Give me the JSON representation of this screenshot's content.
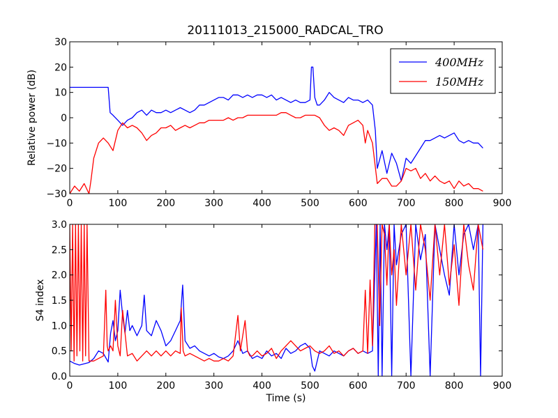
{
  "figure_title": "20111013_215000_RADCAL_TRO",
  "colors": {
    "series_400": "#0000ff",
    "series_150": "#ff0000"
  },
  "chart_data": [
    {
      "type": "line",
      "title": "20111013_215000_RADCAL_TRO",
      "xlabel": "",
      "ylabel": "Relative power (dB)",
      "xlim": [
        0,
        900
      ],
      "ylim": [
        -30,
        30
      ],
      "xticks": [
        0,
        100,
        200,
        300,
        400,
        500,
        600,
        700,
        800,
        900
      ],
      "yticks": [
        -30,
        -20,
        -10,
        0,
        10,
        20,
        30
      ],
      "xtick_labels": [
        "0",
        "100",
        "200",
        "300",
        "400",
        "500",
        "600",
        "700",
        "800",
        "900"
      ],
      "ytick_labels": [
        "−30",
        "−20",
        "−10",
        "0",
        "10",
        "20",
        "30"
      ],
      "grid": false,
      "legend": "top-right",
      "series": [
        {
          "name": "400MHz",
          "color": "#0000ff",
          "x": [
            0,
            20,
            40,
            60,
            80,
            84,
            90,
            100,
            110,
            120,
            130,
            140,
            150,
            160,
            170,
            180,
            190,
            200,
            210,
            220,
            230,
            240,
            250,
            260,
            270,
            280,
            290,
            300,
            310,
            320,
            330,
            340,
            350,
            360,
            370,
            380,
            390,
            400,
            410,
            420,
            430,
            440,
            450,
            460,
            470,
            480,
            490,
            500,
            503,
            506,
            510,
            515,
            520,
            530,
            540,
            550,
            560,
            570,
            580,
            590,
            600,
            610,
            620,
            630,
            636,
            640,
            650,
            660,
            670,
            680,
            690,
            700,
            710,
            720,
            730,
            740,
            750,
            760,
            770,
            780,
            790,
            800,
            810,
            820,
            830,
            840,
            850,
            860
          ],
          "y": [
            12,
            12,
            12,
            12,
            12,
            2,
            1,
            -1,
            -3,
            -1,
            0,
            2,
            3,
            1,
            3,
            2,
            2,
            3,
            2,
            3,
            4,
            3,
            2,
            3,
            5,
            5,
            6,
            7,
            8,
            8,
            7,
            9,
            9,
            8,
            9,
            8,
            9,
            9,
            8,
            9,
            7,
            8,
            7,
            6,
            7,
            6,
            6,
            7,
            20,
            20,
            8,
            5,
            5,
            7,
            10,
            8,
            7,
            6,
            8,
            7,
            7,
            6,
            7,
            5,
            -5,
            -20,
            -13,
            -22,
            -14,
            -18,
            -25,
            -16,
            -18,
            -15,
            -12,
            -9,
            -9,
            -8,
            -7,
            -8,
            -7,
            -6,
            -9,
            -10,
            -9,
            -10,
            -10,
            -12
          ]
        },
        {
          "name": "150MHz",
          "color": "#ff0000",
          "x": [
            0,
            10,
            20,
            30,
            40,
            44,
            50,
            60,
            70,
            80,
            90,
            100,
            110,
            120,
            130,
            140,
            150,
            160,
            170,
            180,
            190,
            200,
            210,
            220,
            230,
            240,
            250,
            260,
            270,
            280,
            290,
            300,
            310,
            320,
            330,
            340,
            350,
            360,
            370,
            380,
            390,
            400,
            410,
            420,
            430,
            440,
            450,
            460,
            470,
            480,
            490,
            500,
            510,
            520,
            530,
            540,
            550,
            560,
            570,
            580,
            590,
            600,
            610,
            615,
            620,
            630,
            640,
            650,
            660,
            670,
            680,
            690,
            700,
            710,
            720,
            730,
            740,
            750,
            760,
            770,
            780,
            790,
            800,
            810,
            820,
            830,
            840,
            850,
            860
          ],
          "y": [
            -30,
            -27,
            -29,
            -26,
            -30,
            -25,
            -16,
            -10,
            -8,
            -10,
            -13,
            -5,
            -2,
            -4,
            -3,
            -4,
            -6,
            -9,
            -7,
            -6,
            -4,
            -4,
            -3,
            -5,
            -4,
            -3,
            -4,
            -3,
            -2,
            -2,
            -1,
            -1,
            -1,
            -1,
            0,
            -1,
            0,
            0,
            1,
            1,
            1,
            1,
            1,
            1,
            1,
            2,
            2,
            1,
            0,
            0,
            1,
            1,
            1,
            0,
            -3,
            -5,
            -4,
            -5,
            -7,
            -3,
            -2,
            -1,
            -3,
            -10,
            -5,
            -10,
            -26,
            -24,
            -24,
            -27,
            -27,
            -25,
            -20,
            -21,
            -20,
            -24,
            -22,
            -25,
            -23,
            -25,
            -26,
            -25,
            -28,
            -25,
            -27,
            -26,
            -28,
            -28,
            -29
          ]
        }
      ]
    },
    {
      "type": "line",
      "title": "",
      "xlabel": "Time (s)",
      "ylabel": "S4 index",
      "xlim": [
        0,
        900
      ],
      "ylim": [
        0.0,
        3.0
      ],
      "xticks": [
        0,
        100,
        200,
        300,
        400,
        500,
        600,
        700,
        800,
        900
      ],
      "yticks": [
        0.0,
        0.5,
        1.0,
        1.5,
        2.0,
        2.5,
        3.0
      ],
      "xtick_labels": [
        "0",
        "100",
        "200",
        "300",
        "400",
        "500",
        "600",
        "700",
        "800",
        "900"
      ],
      "ytick_labels": [
        "0.0",
        "0.5",
        "1.0",
        "1.5",
        "2.0",
        "2.5",
        "3.0"
      ],
      "grid": false,
      "series": [
        {
          "name": "400MHz",
          "color": "#0000ff",
          "x": [
            0,
            10,
            20,
            40,
            50,
            60,
            70,
            80,
            85,
            90,
            95,
            100,
            105,
            110,
            115,
            120,
            125,
            130,
            140,
            150,
            155,
            160,
            170,
            180,
            190,
            200,
            210,
            220,
            230,
            235,
            240,
            250,
            260,
            270,
            280,
            290,
            300,
            310,
            320,
            330,
            340,
            350,
            360,
            370,
            380,
            390,
            400,
            410,
            420,
            430,
            440,
            450,
            460,
            470,
            480,
            490,
            500,
            505,
            510,
            520,
            530,
            540,
            550,
            560,
            570,
            580,
            590,
            600,
            610,
            620,
            630,
            638,
            642,
            646,
            650,
            655,
            660,
            665,
            670,
            675,
            680,
            690,
            700,
            710,
            720,
            730,
            740,
            750,
            760,
            770,
            780,
            790,
            800,
            810,
            820,
            830,
            840,
            850,
            855,
            860
          ],
          "y": [
            0.3,
            0.25,
            0.22,
            0.27,
            0.35,
            0.5,
            0.45,
            0.28,
            0.85,
            1.1,
            0.7,
            0.9,
            1.7,
            1.2,
            0.85,
            1.3,
            0.9,
            1.0,
            0.8,
            1.0,
            1.6,
            0.9,
            0.8,
            1.1,
            0.9,
            0.6,
            0.7,
            0.9,
            1.1,
            1.8,
            0.7,
            0.55,
            0.6,
            0.5,
            0.45,
            0.4,
            0.45,
            0.38,
            0.35,
            0.4,
            0.5,
            0.7,
            0.45,
            0.5,
            0.35,
            0.4,
            0.35,
            0.5,
            0.4,
            0.45,
            0.35,
            0.55,
            0.45,
            0.5,
            0.6,
            0.65,
            0.55,
            0.2,
            0.1,
            0.5,
            0.45,
            0.4,
            0.5,
            0.45,
            0.4,
            0.5,
            0.55,
            0.45,
            0.5,
            0.45,
            0.5,
            3.0,
            0.0,
            3.0,
            0.0,
            3.0,
            2.5,
            3.0,
            0.0,
            3.0,
            2.2,
            2.8,
            3.0,
            0.0,
            3.0,
            2.3,
            2.8,
            0.0,
            3.0,
            2.5,
            2.0,
            1.6,
            3.0,
            2.0,
            2.8,
            3.0,
            2.5,
            3.0,
            0.0,
            3.0
          ]
        },
        {
          "name": "150MHz",
          "color": "#ff0000",
          "x": [
            0,
            3,
            6,
            9,
            12,
            15,
            18,
            21,
            24,
            27,
            30,
            33,
            36,
            40,
            50,
            60,
            70,
            75,
            78,
            80,
            85,
            90,
            95,
            100,
            105,
            110,
            120,
            130,
            140,
            150,
            160,
            170,
            180,
            190,
            200,
            210,
            220,
            230,
            232,
            236,
            240,
            250,
            260,
            270,
            280,
            290,
            300,
            310,
            320,
            330,
            340,
            350,
            355,
            360,
            365,
            370,
            375,
            380,
            390,
            400,
            410,
            420,
            430,
            440,
            450,
            460,
            470,
            480,
            490,
            500,
            510,
            520,
            530,
            540,
            550,
            560,
            570,
            580,
            590,
            600,
            610,
            615,
            620,
            625,
            630,
            635,
            640,
            645,
            650,
            655,
            660,
            665,
            670,
            675,
            680,
            690,
            700,
            710,
            720,
            730,
            740,
            750,
            760,
            770,
            780,
            790,
            800,
            810,
            820,
            830,
            840,
            850,
            860
          ],
          "y": [
            3.0,
            0.5,
            3.0,
            0.3,
            3.0,
            0.4,
            3.0,
            0.5,
            3.0,
            0.3,
            3.0,
            0.4,
            3.0,
            0.3,
            0.3,
            0.35,
            0.4,
            1.7,
            0.6,
            0.5,
            0.6,
            0.5,
            1.5,
            0.6,
            0.4,
            1.3,
            0.4,
            0.45,
            0.3,
            0.4,
            0.5,
            0.4,
            0.5,
            0.4,
            0.5,
            0.4,
            0.5,
            0.45,
            1.35,
            0.5,
            0.4,
            0.45,
            0.4,
            0.35,
            0.3,
            0.35,
            0.3,
            0.3,
            0.35,
            0.3,
            0.4,
            1.2,
            0.5,
            0.8,
            1.1,
            0.5,
            0.4,
            0.4,
            0.5,
            0.4,
            0.45,
            0.55,
            0.35,
            0.5,
            0.6,
            0.7,
            0.6,
            0.5,
            0.55,
            0.6,
            0.5,
            0.45,
            0.5,
            0.6,
            0.45,
            0.5,
            0.4,
            0.5,
            0.55,
            0.45,
            0.5,
            1.7,
            0.45,
            1.9,
            0.6,
            3.0,
            3.0,
            1.0,
            3.0,
            2.8,
            1.8,
            3.0,
            2.0,
            2.5,
            1.4,
            3.0,
            2.0,
            3.0,
            1.7,
            3.0,
            2.5,
            1.5,
            3.0,
            2.0,
            3.0,
            1.8,
            2.6,
            1.4,
            3.0,
            2.2,
            1.7,
            3.0,
            2.5
          ]
        }
      ]
    }
  ]
}
